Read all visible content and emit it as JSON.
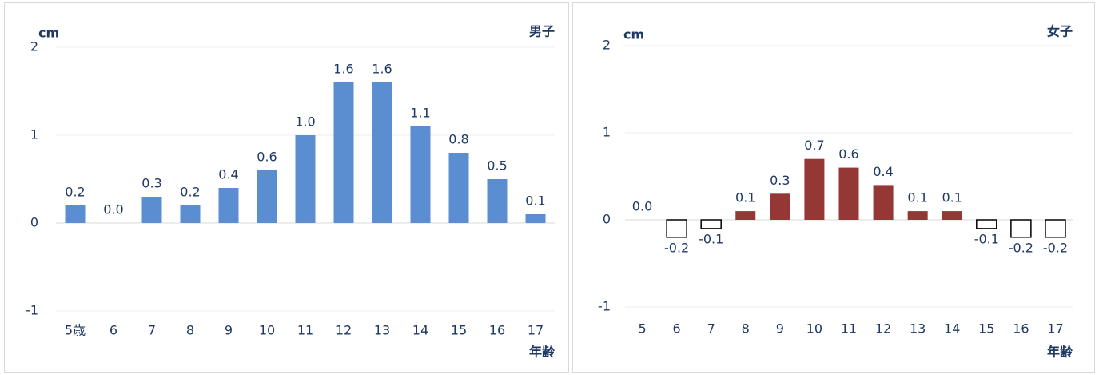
{
  "chart_data": [
    {
      "type": "bar",
      "title": "男子",
      "unit": "cm",
      "xlabel": "年齢",
      "categories": [
        "5歳",
        "6",
        "7",
        "8",
        "9",
        "10",
        "11",
        "12",
        "13",
        "14",
        "15",
        "16",
        "17"
      ],
      "values": [
        0.2,
        0.0,
        0.3,
        0.2,
        0.4,
        0.6,
        1.0,
        1.6,
        1.6,
        1.1,
        0.8,
        0.5,
        0.1
      ],
      "value_labels": [
        "0.2",
        "0.0",
        "0.3",
        "0.2",
        "0.4",
        "0.6",
        "1.0",
        "1.6",
        "1.6",
        "1.1",
        "0.8",
        "0.5",
        "0.1"
      ],
      "color": "#5b8ed0",
      "negative_color": "#ffffff",
      "ylim": [
        -1,
        2
      ],
      "yticks": [
        -1,
        0,
        1,
        2
      ],
      "grid": true
    },
    {
      "type": "bar",
      "title": "女子",
      "unit": "cm",
      "xlabel": "年齢",
      "categories": [
        "5",
        "6",
        "7",
        "8",
        "9",
        "10",
        "11",
        "12",
        "13",
        "14",
        "15",
        "16",
        "17"
      ],
      "values": [
        0.0,
        -0.2,
        -0.1,
        0.1,
        0.3,
        0.7,
        0.6,
        0.4,
        0.1,
        0.1,
        -0.1,
        -0.2,
        -0.2
      ],
      "value_labels": [
        "0.0",
        "-0.2",
        "-0.1",
        "0.1",
        "0.3",
        "0.7",
        "0.6",
        "0.4",
        "0.1",
        "0.1",
        "-0.1",
        "-0.2",
        "-0.2"
      ],
      "color": "#953735",
      "negative_color": "#ffffff",
      "ylim": [
        -1,
        2
      ],
      "yticks": [
        -1,
        0,
        1,
        2
      ],
      "grid": true
    }
  ]
}
